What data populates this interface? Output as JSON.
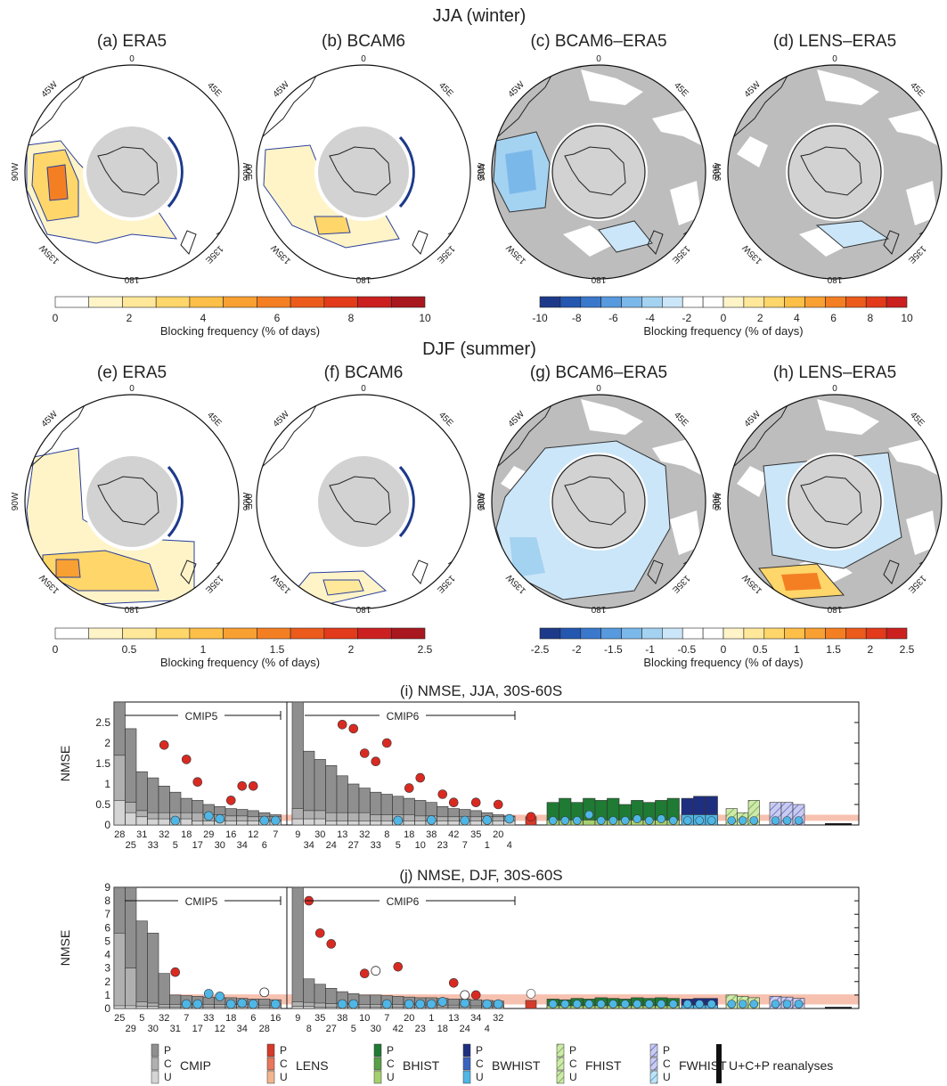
{
  "colors": {
    "land": "#bdbdbd",
    "antarctica": "#d2d2d2",
    "red_dot": "#d92a22",
    "blue_dot": "#4fb6e6",
    "cmip_p": "#8f8f8f",
    "cmip_c": "#b0b0b0",
    "cmip_u": "#d4d4d4",
    "lens_p": "#d43a2a",
    "lens_c": "#e8775a",
    "lens_u": "#f2b58e",
    "bhist_p": "#1f7a33",
    "bhist_c": "#5aa048",
    "bhist_u": "#a6d06e",
    "bwhist_p": "#1e2f80",
    "bwhist_c": "#3a62c0",
    "bwhist_u": "#4fb6e6",
    "fhist": "#b8e08a",
    "fwhist": "#b6b8e8",
    "reanalyses": "#111111",
    "band": "#f7c1b0"
  },
  "sections": {
    "jja": "JJA (winter)",
    "djf": "DJF (summer)"
  },
  "maps": [
    {
      "label": "(a) ERA5",
      "top": "0",
      "left": "45W",
      "right": "45E",
      "w": "90W",
      "e": "90E",
      "bl": "135W",
      "br": "135E",
      "bottom": "180",
      "kind": "era_jja"
    },
    {
      "label": "(b) BCAM6",
      "top": "0",
      "left": "45W",
      "right": "45E",
      "w": "90W",
      "e": "90E",
      "bl": "135W",
      "br": "135E",
      "bottom": "180",
      "kind": "bcam_jja"
    },
    {
      "label": "(c) BCAM6–ERA5",
      "top": "0",
      "left": "45W",
      "right": "45E",
      "w": "90W",
      "e": "90E",
      "bl": "135W",
      "br": "135E",
      "bottom": "180",
      "kind": "diff_jja_c"
    },
    {
      "label": "(d) LENS–ERA5",
      "top": "0",
      "left": "45W",
      "right": "45E",
      "w": "90W",
      "e": "90E",
      "bl": "135W",
      "br": "135E",
      "bottom": "180",
      "kind": "diff_jja_d"
    },
    {
      "label": "(e) ERA5",
      "top": "0",
      "left": "45W",
      "right": "45E",
      "w": "90W",
      "e": "90E",
      "bl": "135W",
      "br": "135E",
      "bottom": "180",
      "kind": "era_djf"
    },
    {
      "label": "(f) BCAM6",
      "top": "0",
      "left": "45W",
      "right": "45E",
      "w": "90W",
      "e": "90E",
      "bl": "135W",
      "br": "135E",
      "bottom": "180",
      "kind": "bcam_djf"
    },
    {
      "label": "(g) BCAM6–ERA5",
      "top": "0",
      "left": "45W",
      "right": "45E",
      "w": "90W",
      "e": "90E",
      "bl": "135W",
      "br": "135E",
      "bottom": "180",
      "kind": "diff_djf_g"
    },
    {
      "label": "(h) LENS–ERA5",
      "top": "0",
      "left": "45W",
      "right": "45E",
      "w": "90W",
      "e": "90E",
      "bl": "135W",
      "br": "135E",
      "bottom": "180",
      "kind": "diff_djf_h"
    }
  ],
  "colorbars": [
    {
      "ticks": [
        "0",
        "2",
        "4",
        "6",
        "8",
        "10"
      ],
      "label": "Blocking frequency (% of days)",
      "colors": [
        "#ffffff",
        "#fff4c8",
        "#ffe89a",
        "#fed66a",
        "#fdbf47",
        "#f9a032",
        "#f47f23",
        "#ec5b1c",
        "#e23a1a",
        "#cc2020",
        "#a8181e"
      ]
    },
    {
      "ticks": [
        "-10",
        "-8",
        "-6",
        "-4",
        "-2",
        "0",
        "2",
        "4",
        "6",
        "8",
        "10"
      ],
      "label": "Blocking frequency (% of days)",
      "colors": [
        "#1d3a8a",
        "#2457b0",
        "#3a78cc",
        "#579ade",
        "#7bb8ea",
        "#a4d2f1",
        "#cbe6f8",
        "#ffffff",
        "#ffffff",
        "#fff4c8",
        "#ffe89a",
        "#fed66a",
        "#fdbf47",
        "#f9a032",
        "#f47f23",
        "#ec5b1c",
        "#e23a1a",
        "#cc2020"
      ]
    },
    {
      "ticks": [
        "0",
        "0.5",
        "1",
        "1.5",
        "2",
        "2.5"
      ],
      "label": "Blocking frequency (% of days)",
      "colors": [
        "#ffffff",
        "#fff4c8",
        "#ffe89a",
        "#fed66a",
        "#fdbf47",
        "#f9a032",
        "#f47f23",
        "#ec5b1c",
        "#e23a1a",
        "#cc2020",
        "#a8181e"
      ]
    },
    {
      "ticks": [
        "-2.5",
        "-2",
        "-1.5",
        "-1",
        "-0.5",
        "0",
        "0.5",
        "1",
        "1.5",
        "2",
        "2.5"
      ],
      "label": "Blocking frequency (% of days)",
      "colors": [
        "#1d3a8a",
        "#2457b0",
        "#3a78cc",
        "#579ade",
        "#7bb8ea",
        "#a4d2f1",
        "#cbe6f8",
        "#ffffff",
        "#ffffff",
        "#fff4c8",
        "#ffe89a",
        "#fed66a",
        "#fdbf47",
        "#f9a032",
        "#f47f23",
        "#ec5b1c",
        "#e23a1a",
        "#cc2020"
      ]
    }
  ],
  "chart_data": [
    {
      "type": "bar",
      "title": "(i) NMSE, JJA, 30S-60S",
      "ylabel": "NMSE",
      "ylim": [
        0,
        3
      ],
      "yticks": [
        "0",
        "0.5",
        "1",
        "1.5",
        "2",
        "2.5"
      ],
      "group_labels": {
        "cmip5": "CMIP5",
        "cmip6": "CMIP6"
      },
      "cmip5": {
        "models": [
          28,
          25,
          31,
          33,
          32,
          5,
          18,
          17,
          29,
          30,
          16,
          34,
          12,
          6,
          7
        ],
        "total": [
          3.0,
          2.35,
          1.3,
          1.15,
          0.95,
          0.8,
          0.65,
          0.6,
          0.5,
          0.45,
          0.4,
          0.38,
          0.35,
          0.3,
          0.25
        ],
        "cu": [
          1.7,
          0.55,
          0.35,
          0.3,
          0.3,
          0.3,
          0.3,
          0.3,
          0.25,
          0.25,
          0.22,
          0.22,
          0.2,
          0.2,
          0.2
        ],
        "u": [
          0.6,
          0.3,
          0.2,
          0.15,
          0.15,
          0.15,
          0.15,
          0.1,
          0.1,
          0.1,
          0.1,
          0.1,
          0.1,
          0.1,
          0.1
        ],
        "red": [
          null,
          null,
          null,
          null,
          1.95,
          null,
          1.6,
          1.05,
          null,
          null,
          0.6,
          0.95,
          0.95,
          null,
          null
        ],
        "blue": [
          null,
          null,
          null,
          null,
          null,
          0.05,
          null,
          null,
          0.22,
          0.15,
          null,
          null,
          null,
          0.1,
          0.1
        ]
      },
      "cmip6": {
        "models": [
          9,
          34,
          30,
          24,
          13,
          27,
          32,
          33,
          8,
          5,
          18,
          10,
          38,
          23,
          42,
          7,
          35,
          1,
          20,
          4
        ],
        "total": [
          3.0,
          1.8,
          1.6,
          1.45,
          1.2,
          1.0,
          0.9,
          0.8,
          0.75,
          0.7,
          0.65,
          0.6,
          0.55,
          0.45,
          0.4,
          0.38,
          0.35,
          0.3,
          0.25,
          0.22
        ],
        "cu": [
          0.4,
          0.35,
          0.35,
          0.3,
          0.3,
          0.3,
          0.3,
          0.25,
          0.25,
          0.25,
          0.25,
          0.22,
          0.22,
          0.2,
          0.2,
          0.2,
          0.2,
          0.2,
          0.2,
          0.2
        ],
        "u": [
          0.15,
          0.15,
          0.15,
          0.1,
          0.1,
          0.1,
          0.1,
          0.1,
          0.1,
          0.1,
          0.1,
          0.1,
          0.1,
          0.1,
          0.1,
          0.1,
          0.1,
          0.1,
          0.1,
          0.1
        ],
        "red": [
          null,
          null,
          null,
          null,
          2.45,
          2.35,
          1.75,
          1.55,
          2.0,
          null,
          0.9,
          1.15,
          null,
          0.75,
          0.55,
          null,
          0.55,
          null,
          0.5,
          null
        ],
        "blue": [
          null,
          null,
          null,
          null,
          null,
          null,
          null,
          null,
          null,
          0.05,
          null,
          null,
          0.12,
          null,
          null,
          0.1,
          null,
          0.12,
          null,
          0.15
        ]
      },
      "lens": {
        "total": 0.2,
        "circle": 0.2
      },
      "bhist": {
        "total": [
          0.55,
          0.65,
          0.55,
          0.65,
          0.6,
          0.65,
          0.5,
          0.6,
          0.55,
          0.6,
          0.65
        ],
        "cu": 0.12,
        "circles": [
          0.1,
          0.1,
          0.1,
          0.25,
          0.1,
          0.1,
          0.1,
          0.15,
          0.1,
          0.15,
          0.1
        ]
      },
      "bwhist": {
        "total": [
          0.65,
          0.7,
          0.7
        ],
        "cu": 0.25,
        "circles": [
          0.1,
          0.1,
          0.1
        ]
      },
      "fhist": {
        "total": [
          0.4,
          0.3,
          0.6
        ],
        "circles": [
          0.1,
          0.1,
          0.1
        ]
      },
      "fwhist": {
        "total": [
          0.55,
          0.55,
          0.5
        ],
        "circles": [
          0.1,
          0.1,
          0.1
        ]
      },
      "reanalyses": 0.02,
      "band": [
        0.1,
        0.25
      ]
    },
    {
      "type": "bar",
      "title": "(j) NMSE, DJF, 30S-60S",
      "ylabel": "NMSE",
      "ylim": [
        0,
        9
      ],
      "yticks": [
        "0",
        "1",
        "2",
        "3",
        "4",
        "5",
        "6",
        "7",
        "8",
        "9"
      ],
      "group_labels": {
        "cmip5": "CMIP5",
        "cmip6": "CMIP6"
      },
      "cmip5": {
        "models": [
          25,
          29,
          5,
          30,
          32,
          31,
          7,
          17,
          33,
          12,
          18,
          34,
          6,
          28,
          16
        ],
        "total": [
          9,
          9,
          6.5,
          5.6,
          2.6,
          1.0,
          0.95,
          0.9,
          0.85,
          0.8,
          0.8,
          0.75,
          0.7,
          0.7,
          0.65
        ],
        "cu": [
          5.6,
          3.0,
          0.5,
          0.4,
          0.3,
          0.3,
          0.3,
          0.3,
          0.3,
          0.3,
          0.3,
          0.3,
          0.3,
          0.25,
          0.25
        ],
        "u": [
          0.2,
          0.2,
          0.15,
          0.15,
          0.1,
          0.1,
          0.1,
          0.1,
          0.1,
          0.1,
          0.1,
          0.1,
          0.1,
          0.1,
          0.1
        ],
        "red": [
          null,
          null,
          null,
          null,
          null,
          2.7,
          null,
          null,
          null,
          null,
          null,
          null,
          null,
          null,
          null
        ],
        "blue": [
          null,
          null,
          null,
          null,
          null,
          null,
          0.0,
          0.0,
          1.1,
          0.9,
          0.3,
          0.4,
          0.2,
          null,
          0.0
        ],
        "white": [
          null,
          null,
          null,
          null,
          null,
          null,
          null,
          null,
          null,
          null,
          null,
          null,
          null,
          1.2,
          null
        ]
      },
      "cmip6": {
        "models": [
          9,
          8,
          35,
          27,
          38,
          5,
          10,
          30,
          7,
          42,
          20,
          23,
          1,
          18,
          13,
          24,
          34,
          4,
          32
        ],
        "total": [
          9,
          2.2,
          1.8,
          1.5,
          1.25,
          1.1,
          1.0,
          1.0,
          0.95,
          0.9,
          0.85,
          0.8,
          0.8,
          0.75,
          0.7,
          0.7,
          0.65,
          0.6,
          0.55
        ],
        "cu": [
          0.5,
          0.45,
          0.4,
          0.35,
          0.35,
          0.3,
          0.3,
          0.3,
          0.3,
          0.3,
          0.3,
          0.25,
          0.25,
          0.25,
          0.25,
          0.25,
          0.2,
          0.2,
          0.2
        ],
        "u": [
          0.15,
          0.15,
          0.1,
          0.1,
          0.1,
          0.1,
          0.1,
          0.1,
          0.1,
          0.1,
          0.1,
          0.1,
          0.1,
          0.1,
          0.1,
          0.1,
          0.1,
          0.1,
          0.1
        ],
        "red": [
          null,
          8.0,
          5.6,
          4.8,
          null,
          null,
          2.6,
          null,
          null,
          3.1,
          null,
          null,
          null,
          null,
          1.9,
          null,
          1.0,
          null,
          null
        ],
        "blue": [
          null,
          null,
          null,
          null,
          0.0,
          0.0,
          null,
          null,
          0.0,
          null,
          0.3,
          0.2,
          0.0,
          0.5,
          null,
          0.4,
          null,
          0.0,
          0.0
        ],
        "white": [
          null,
          null,
          null,
          null,
          null,
          null,
          null,
          2.8,
          null,
          null,
          null,
          null,
          null,
          null,
          null,
          1.0,
          null,
          null,
          null
        ]
      },
      "lens": {
        "total": 0.6,
        "circle": 1.1
      },
      "bhist": {
        "total": [
          0.7,
          0.65,
          0.75,
          0.7,
          0.8,
          0.75,
          0.7,
          0.8,
          0.75,
          0.8,
          0.75
        ],
        "cu": 0.2,
        "circles": [
          0.1,
          0.0,
          0.0,
          0.0,
          0.0,
          0.0,
          0.0,
          0.0,
          0.0,
          0.0,
          0.0
        ]
      },
      "bwhist": {
        "total": [
          0.7,
          0.75,
          0.75
        ],
        "cu": 0.25,
        "circles": [
          0.0,
          0.0,
          0.0
        ]
      },
      "fhist": {
        "total": [
          1.0,
          0.9,
          0.8
        ],
        "circles": [
          0.0,
          0.0,
          0.0
        ]
      },
      "fwhist": {
        "total": [
          0.9,
          0.85,
          0.75
        ],
        "circles": [
          0.0,
          0.0,
          0.0
        ]
      },
      "reanalyses": 0.05,
      "band": [
        0.3,
        1.05
      ]
    }
  ],
  "legend": {
    "pcu": [
      "P",
      "C",
      "U"
    ],
    "items": [
      "CMIP",
      "LENS",
      "BHIST",
      "BWHIST",
      "FHIST",
      "FWHIST"
    ],
    "reanalyses": "U+C+P reanalyses"
  }
}
